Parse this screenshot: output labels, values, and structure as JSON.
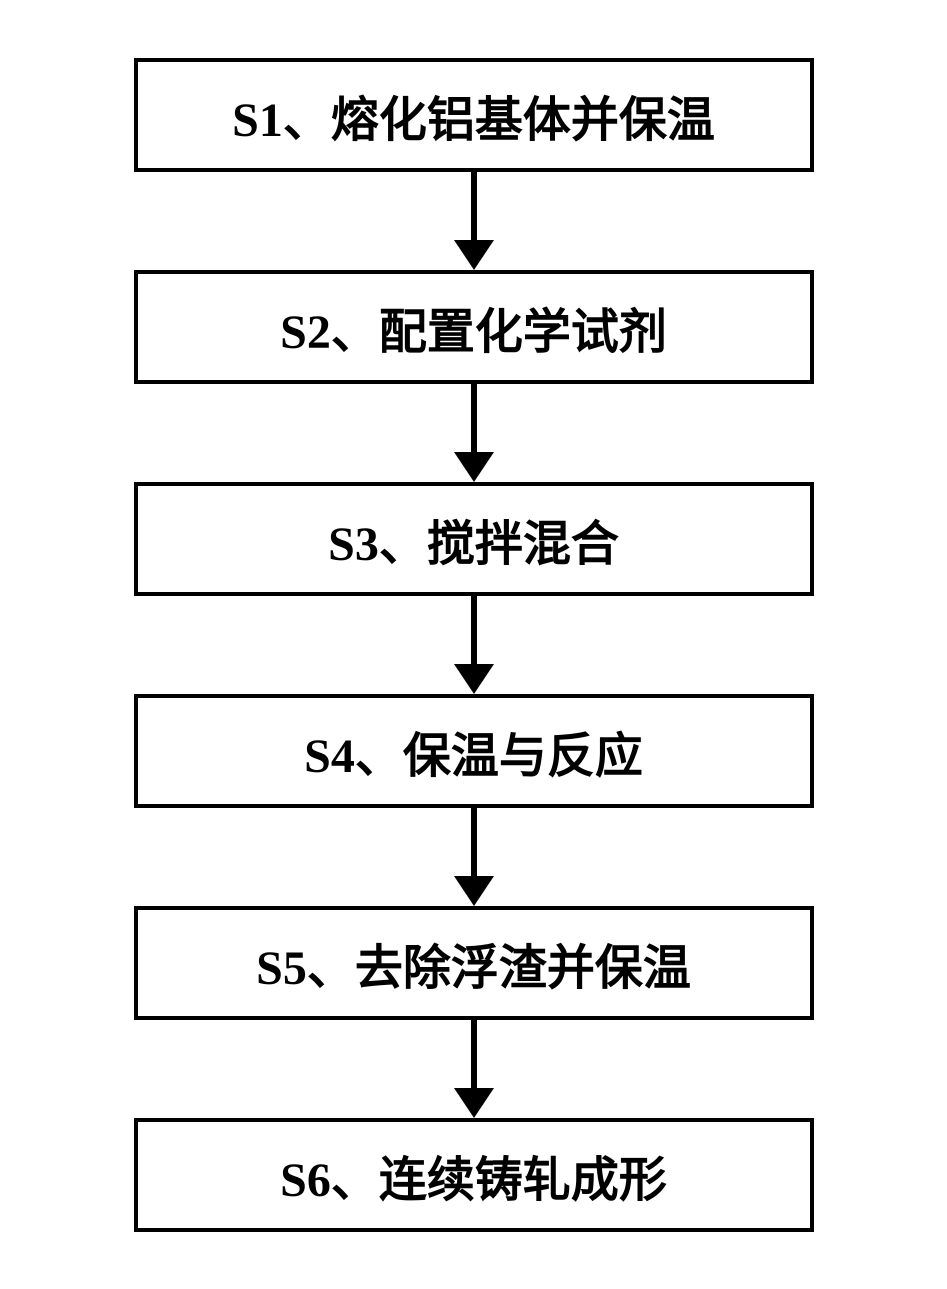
{
  "flowchart": {
    "type": "flowchart",
    "direction": "vertical",
    "background_color": "#ffffff",
    "box_border_color": "#000000",
    "box_border_width": 4,
    "box_fill_color": "#ffffff",
    "text_color": "#000000",
    "font_size_pt": 36,
    "font_weight": "bold",
    "font_family": "SimSun",
    "arrow_color": "#000000",
    "arrow_line_width": 6,
    "arrow_line_length": 70,
    "arrow_head_size": 20,
    "box_min_width": 680,
    "box_padding_v": 18,
    "box_padding_h": 30,
    "steps": [
      {
        "id": "S1",
        "label": "S1、熔化铝基体并保温"
      },
      {
        "id": "S2",
        "label": "S2、配置化学试剂"
      },
      {
        "id": "S3",
        "label": "S3、搅拌混合"
      },
      {
        "id": "S4",
        "label": "S4、保温与反应"
      },
      {
        "id": "S5",
        "label": "S5、去除浮渣并保温"
      },
      {
        "id": "S6",
        "label": "S6、连续铸轧成形"
      }
    ],
    "edges": [
      {
        "from": "S1",
        "to": "S2"
      },
      {
        "from": "S2",
        "to": "S3"
      },
      {
        "from": "S3",
        "to": "S4"
      },
      {
        "from": "S4",
        "to": "S5"
      },
      {
        "from": "S5",
        "to": "S6"
      }
    ]
  }
}
